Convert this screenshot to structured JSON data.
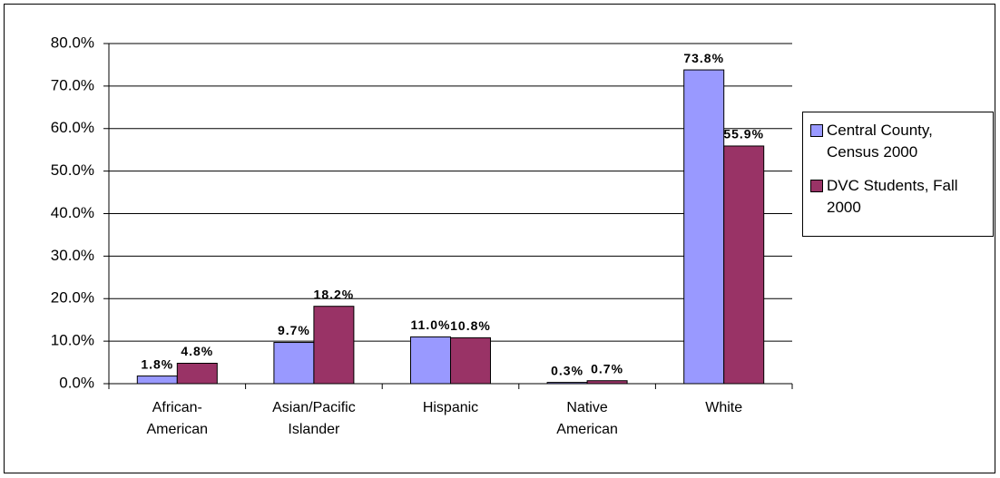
{
  "chart_data": {
    "type": "bar",
    "categories": [
      "African-American",
      "Asian/Pacific Islander",
      "Hispanic",
      "Native American",
      "White"
    ],
    "series": [
      {
        "name": "Central County, Census 2000",
        "color": "#9999ff",
        "values": [
          1.8,
          9.7,
          11.0,
          0.3,
          73.8
        ],
        "value_labels": [
          "1.8%",
          "9.7%",
          "11.0%",
          "0.3%",
          "73.8%"
        ]
      },
      {
        "name": "DVC Students, Fall 2000",
        "color": "#993366",
        "values": [
          4.8,
          18.2,
          10.8,
          0.7,
          55.9
        ],
        "value_labels": [
          "4.8%",
          "18.2%",
          "10.8%",
          "0.7%",
          "55.9%"
        ]
      }
    ],
    "ylim": [
      0,
      80
    ],
    "yticks": [
      {
        "value": 0,
        "label": "0.0%"
      },
      {
        "value": 10,
        "label": "10.0%"
      },
      {
        "value": 20,
        "label": "20.0%"
      },
      {
        "value": 30,
        "label": "30.0%"
      },
      {
        "value": 40,
        "label": "40.0%"
      },
      {
        "value": 50,
        "label": "50.0%"
      },
      {
        "value": 60,
        "label": "60.0%"
      },
      {
        "value": 70,
        "label": "70.0%"
      },
      {
        "value": 80,
        "label": "80.0%"
      }
    ],
    "grid": true,
    "legend": "right"
  }
}
